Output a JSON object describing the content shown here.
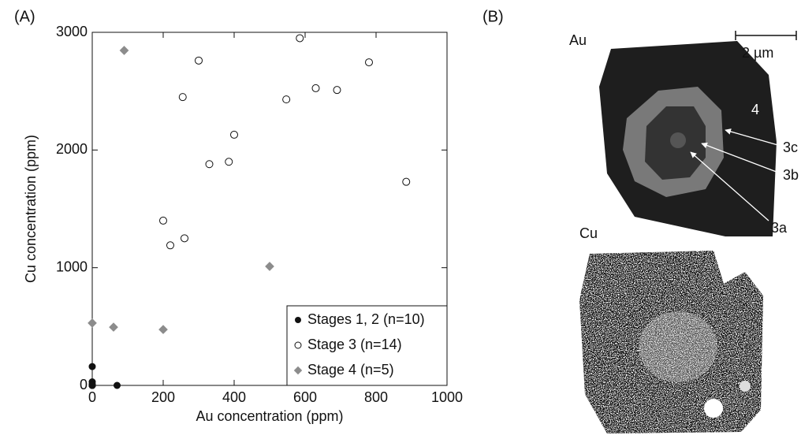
{
  "chart_data": {
    "type": "scatter",
    "xlabel": "Au concentration (ppm)",
    "ylabel": "Cu concentration (ppm)",
    "xlim": [
      0,
      1000
    ],
    "ylim": [
      0,
      3000
    ],
    "xticks": [
      0,
      200,
      400,
      600,
      800,
      1000
    ],
    "yticks": [
      0,
      1000,
      2000,
      3000
    ],
    "legend": "lower right",
    "series": [
      {
        "name": "Stages 1, 2 (n=10)",
        "color": "#111111",
        "marker": "filled-circle",
        "x": [
          0,
          0,
          0,
          0,
          0,
          0,
          0,
          0,
          0,
          70
        ],
        "values": [
          160,
          30,
          10,
          0,
          0,
          0,
          0,
          0,
          0,
          0
        ]
      },
      {
        "name": "Stage 3 (n=14)",
        "color": "#111111",
        "marker": "open-circle",
        "x": [
          585,
          300,
          780,
          630,
          690,
          255,
          547,
          400,
          330,
          385,
          885,
          200,
          260,
          220
        ],
        "values": [
          2950,
          2760,
          2745,
          2525,
          2510,
          2450,
          2430,
          2130,
          1880,
          1900,
          1730,
          1400,
          1250,
          1190
        ]
      },
      {
        "name": "Stage 4 (n=5)",
        "color": "#8c8c8c",
        "marker": "diamond",
        "x": [
          90,
          500,
          0,
          60,
          200
        ],
        "values": [
          2846,
          1011,
          530,
          495,
          475
        ]
      }
    ]
  },
  "panel_labels": [
    "(A)",
    "(B)"
  ],
  "panel_b": {
    "au_label": "Au",
    "cu_label": "Cu",
    "scale_bar": "2 µm",
    "zones": [
      "4",
      "3c",
      "3b",
      "3a"
    ]
  }
}
